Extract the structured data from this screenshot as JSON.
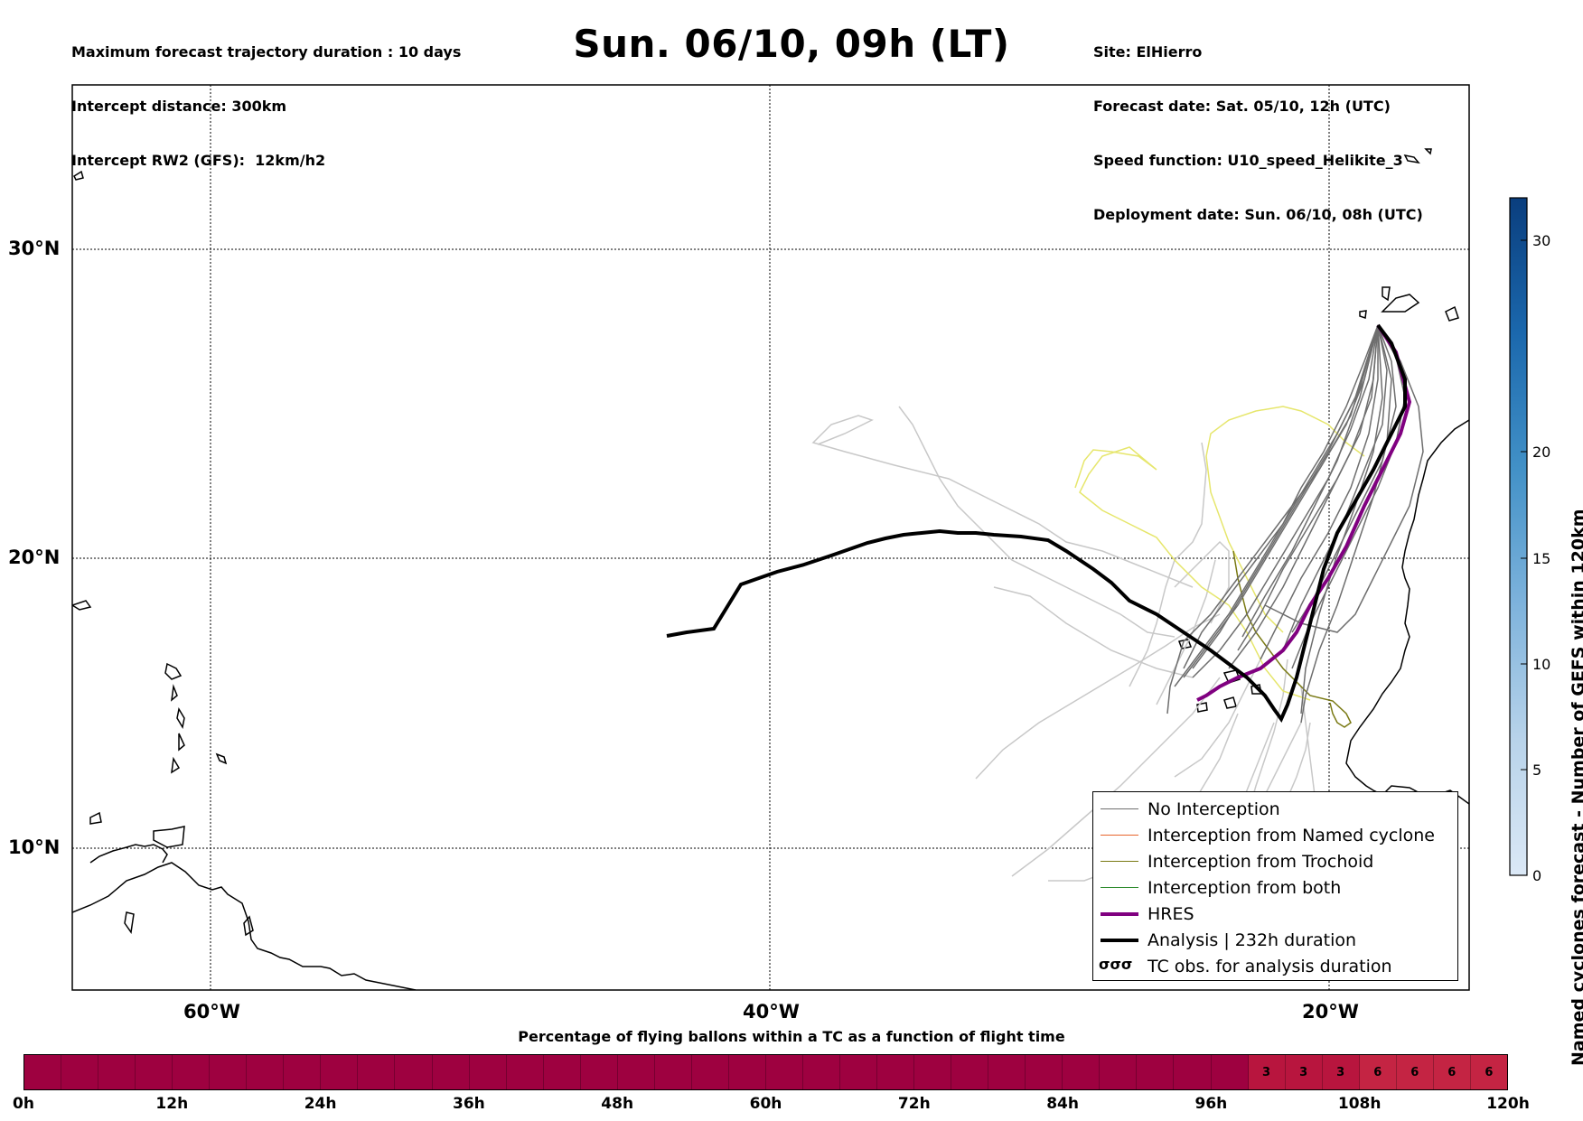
{
  "header": {
    "left_lines": [
      "Maximum forecast trajectory duration : 10 days",
      "Intercept distance: 300km",
      "Intercept RW2 (GFS):  12km/h2"
    ],
    "title": "Sun. 06/10, 09h (LT)",
    "right_lines": [
      "Site: ElHierro",
      "Forecast date: Sat. 05/10, 12h (UTC)",
      "Speed function: U10_speed_Helikite_3",
      "Deployment date: Sun. 06/10, 08h (UTC)"
    ]
  },
  "map": {
    "lon_range": [
      -65,
      -15
    ],
    "lat_range": [
      5,
      35
    ],
    "lat_labels": [
      "30°N",
      "20°N",
      "10°N"
    ],
    "lon_labels": [
      "60°W",
      "40°W",
      "20°W"
    ],
    "colors": {
      "no_interception": "#6e6e6e",
      "named_cyclone": "#e8642c",
      "trochoid": "#7a7a14",
      "both": "#2e8b2e",
      "hres": "#800080",
      "analysis": "#000000",
      "ensemble_light": "#c8c8c8",
      "yellow": "#e8e86a"
    }
  },
  "legend": {
    "items": [
      "No Interception",
      "Interception from Named cyclone",
      "Interception from Trochoid",
      "Interception from both",
      "HRES",
      "Analysis | 232h duration",
      "TC obs. for analysis duration"
    ],
    "tc_glyph": "σσσ"
  },
  "colorbar": {
    "title": "Named cyclones forecast - Number of GEFS within 120km",
    "ticks": [
      "0",
      "5",
      "10",
      "15",
      "20",
      "30"
    ],
    "max": 32
  },
  "histogram": {
    "title": "Percentage of flying ballons within a TC as a function of flight time",
    "ticks": [
      "0h",
      "12h",
      "24h",
      "36h",
      "48h",
      "60h",
      "72h",
      "84h",
      "96h",
      "108h",
      "120h"
    ],
    "cells": [
      "",
      "",
      "",
      "",
      "",
      "",
      "",
      "",
      "",
      "",
      "",
      "",
      "",
      "",
      "",
      "",
      "",
      "",
      "",
      "",
      "",
      "",
      "",
      "",
      "",
      "",
      "",
      "",
      "",
      "",
      "",
      "",
      "",
      "3",
      "3",
      "3",
      "6",
      "6",
      "6",
      "6"
    ],
    "base_color": "#9e0140",
    "light_color": "#b8153e",
    "lighter_color": "#c42443"
  }
}
